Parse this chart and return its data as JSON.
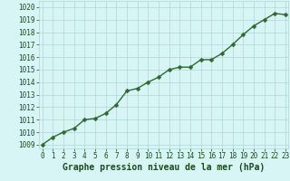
{
  "x": [
    0,
    1,
    2,
    3,
    4,
    5,
    6,
    7,
    8,
    9,
    10,
    11,
    12,
    13,
    14,
    15,
    16,
    17,
    18,
    19,
    20,
    21,
    22,
    23
  ],
  "y": [
    1009.0,
    1009.6,
    1010.0,
    1010.3,
    1011.0,
    1011.1,
    1011.5,
    1012.2,
    1013.3,
    1013.5,
    1014.0,
    1014.4,
    1015.0,
    1015.2,
    1015.2,
    1015.8,
    1015.8,
    1016.3,
    1017.0,
    1017.8,
    1018.5,
    1019.0,
    1019.5,
    1019.4
  ],
  "ylim": [
    1008.7,
    1020.5
  ],
  "xlim": [
    -0.3,
    23.3
  ],
  "yticks": [
    1009,
    1010,
    1011,
    1012,
    1013,
    1014,
    1015,
    1016,
    1017,
    1018,
    1019,
    1020
  ],
  "xticks": [
    0,
    1,
    2,
    3,
    4,
    5,
    6,
    7,
    8,
    9,
    10,
    11,
    12,
    13,
    14,
    15,
    16,
    17,
    18,
    19,
    20,
    21,
    22,
    23
  ],
  "line_color": "#2d6a2d",
  "marker": "D",
  "marker_size": 2.5,
  "bg_color": "#d8f5f5",
  "grid_color": "#b0d4d4",
  "xlabel": "Graphe pression niveau de la mer (hPa)",
  "xlabel_color": "#1a4a1a",
  "tick_color": "#1a4a1a",
  "tick_fontsize": 5.5,
  "xlabel_fontsize": 7.0,
  "line_width": 1.0
}
